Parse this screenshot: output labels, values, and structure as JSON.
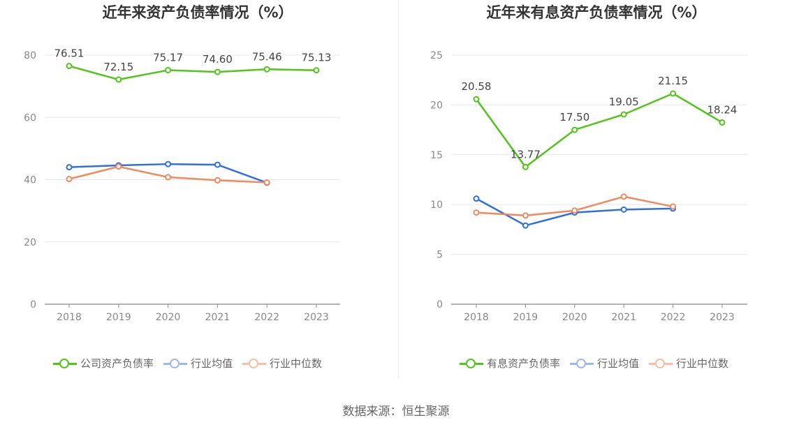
{
  "colors": {
    "company": "#52c41a",
    "average": "#2f6fdf",
    "median": "#f08a5d",
    "grid": "#e6e8ee",
    "axis": "#888888"
  },
  "chart_data": [
    {
      "type": "line",
      "title": "近年来资产负债率情况（%）",
      "categories": [
        "2018",
        "2019",
        "2020",
        "2021",
        "2022",
        "2023"
      ],
      "ylim": [
        0,
        80
      ],
      "yticks": [
        0,
        20,
        40,
        60,
        80
      ],
      "grid": true,
      "legend_position": "bottom",
      "series": [
        {
          "name": "公司资产负债率",
          "color_key": "company",
          "values": [
            76.51,
            72.15,
            75.17,
            74.6,
            75.46,
            75.13
          ],
          "labels": [
            "76.51",
            "72.15",
            "75.17",
            "74.60",
            "75.46",
            "75.13"
          ]
        },
        {
          "name": "行业均值",
          "color_key": "average",
          "values": [
            44.0,
            44.6,
            45.0,
            44.8,
            39.0,
            null
          ]
        },
        {
          "name": "行业中位数",
          "color_key": "median",
          "values": [
            40.2,
            44.2,
            40.8,
            39.8,
            39.1,
            null
          ]
        }
      ]
    },
    {
      "type": "line",
      "title": "近年来有息资产负债率情况（%）",
      "categories": [
        "2018",
        "2019",
        "2020",
        "2021",
        "2022",
        "2023"
      ],
      "ylim": [
        0,
        25
      ],
      "yticks": [
        0,
        5,
        10,
        15,
        20,
        25
      ],
      "grid": true,
      "legend_position": "bottom",
      "series": [
        {
          "name": "有息资产负债率",
          "color_key": "company",
          "values": [
            20.58,
            13.77,
            17.5,
            19.05,
            21.15,
            18.24
          ],
          "labels": [
            "20.58",
            "13.77",
            "17.50",
            "19.05",
            "21.15",
            "18.24"
          ]
        },
        {
          "name": "行业均值",
          "color_key": "average",
          "values": [
            10.6,
            7.9,
            9.2,
            9.5,
            9.6,
            null
          ]
        },
        {
          "name": "行业中位数",
          "color_key": "median",
          "values": [
            9.2,
            8.9,
            9.4,
            10.8,
            9.8,
            null
          ]
        }
      ]
    }
  ],
  "source_text": "数据来源：恒生聚源"
}
